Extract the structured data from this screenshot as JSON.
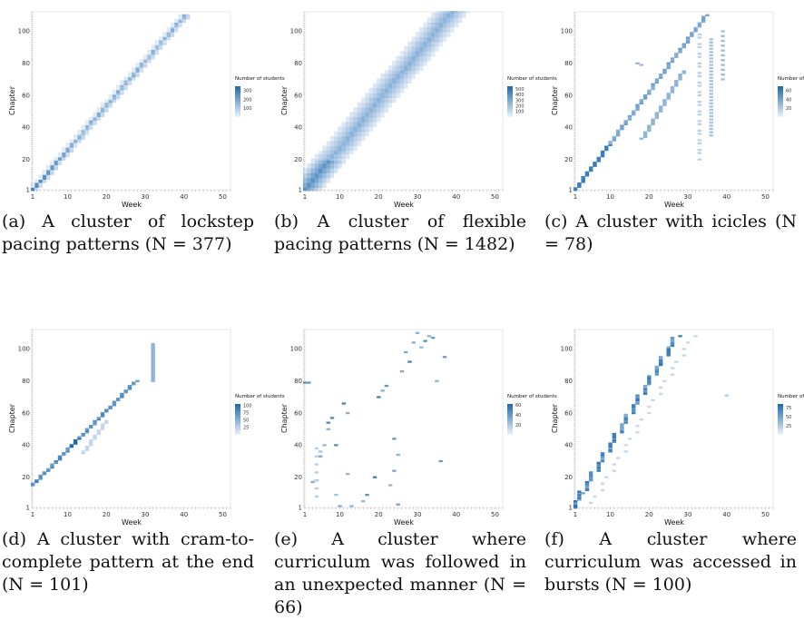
{
  "chart_data": [
    {
      "type": "heatmap",
      "pattern": "lockstep",
      "xlabel": "Week",
      "ylabel": "Chapter",
      "xticks": [
        1,
        10,
        20,
        30,
        40,
        50
      ],
      "yticks": [
        1,
        20,
        40,
        60,
        80,
        100
      ],
      "xlim": [
        1,
        52
      ],
      "ylim": [
        1,
        112
      ],
      "legend": {
        "title": "Number of students",
        "ticks": [
          100,
          200,
          300
        ],
        "max": 350
      },
      "caption": "(a) A cluster of lockstep pacing patterns (N = 377)"
    },
    {
      "type": "heatmap",
      "pattern": "flexible",
      "xlabel": "Week",
      "ylabel": "Chapter",
      "xticks": [
        1,
        10,
        20,
        30,
        40,
        50
      ],
      "yticks": [
        1,
        20,
        40,
        60,
        80,
        100
      ],
      "xlim": [
        1,
        52
      ],
      "ylim": [
        1,
        112
      ],
      "legend": {
        "title": "Number of students",
        "ticks": [
          100,
          200,
          300,
          400,
          500
        ],
        "max": 550
      },
      "caption": "(b) A cluster of flexible pacing patterns (N = 1482)"
    },
    {
      "type": "heatmap",
      "pattern": "icicles",
      "xlabel": "Week",
      "ylabel": "Chapter",
      "xticks": [
        1,
        10,
        20,
        30,
        40,
        50
      ],
      "yticks": [
        1,
        20,
        40,
        60,
        80,
        100
      ],
      "xlim": [
        1,
        52
      ],
      "ylim": [
        1,
        112
      ],
      "legend": {
        "title": "Number of students",
        "ticks": [
          20,
          40,
          60
        ],
        "max": 70
      },
      "caption": "(c) A cluster with icicles (N = 78)"
    },
    {
      "type": "heatmap",
      "pattern": "cram",
      "xlabel": "Week",
      "ylabel": "Chapter",
      "xticks": [
        1,
        10,
        20,
        30,
        40,
        50
      ],
      "yticks": [
        1,
        20,
        40,
        60,
        80,
        100
      ],
      "xlim": [
        1,
        52
      ],
      "ylim": [
        1,
        112
      ],
      "legend": {
        "title": "Number of students",
        "ticks": [
          25,
          50,
          75,
          100
        ],
        "max": 105
      },
      "caption": "(d) A cluster with cram-to-complete pattern at the end (N = 101)"
    },
    {
      "type": "heatmap",
      "pattern": "unexpected",
      "xlabel": "Week",
      "ylabel": "Chapter",
      "xticks": [
        1,
        10,
        20,
        30,
        40,
        50
      ],
      "yticks": [
        1,
        20,
        40,
        60,
        80,
        100
      ],
      "xlim": [
        1,
        52
      ],
      "ylim": [
        1,
        112
      ],
      "legend": {
        "title": "Number of students",
        "ticks": [
          20,
          40,
          60
        ],
        "max": 62
      },
      "caption": "(e) A cluster where curriculum was followed in an unexpected manner (N = 66)"
    },
    {
      "type": "heatmap",
      "pattern": "bursts",
      "xlabel": "Week",
      "ylabel": "Chapter",
      "xticks": [
        1,
        10,
        20,
        30,
        40,
        50
      ],
      "yticks": [
        1,
        20,
        40,
        60,
        80,
        100
      ],
      "xlim": [
        1,
        52
      ],
      "ylim": [
        1,
        112
      ],
      "legend": {
        "title": "Number of students",
        "ticks": [
          25,
          50,
          75
        ],
        "max": 85
      },
      "caption": "(f) A cluster where curriculum was accessed in bursts (N = 100)"
    }
  ]
}
